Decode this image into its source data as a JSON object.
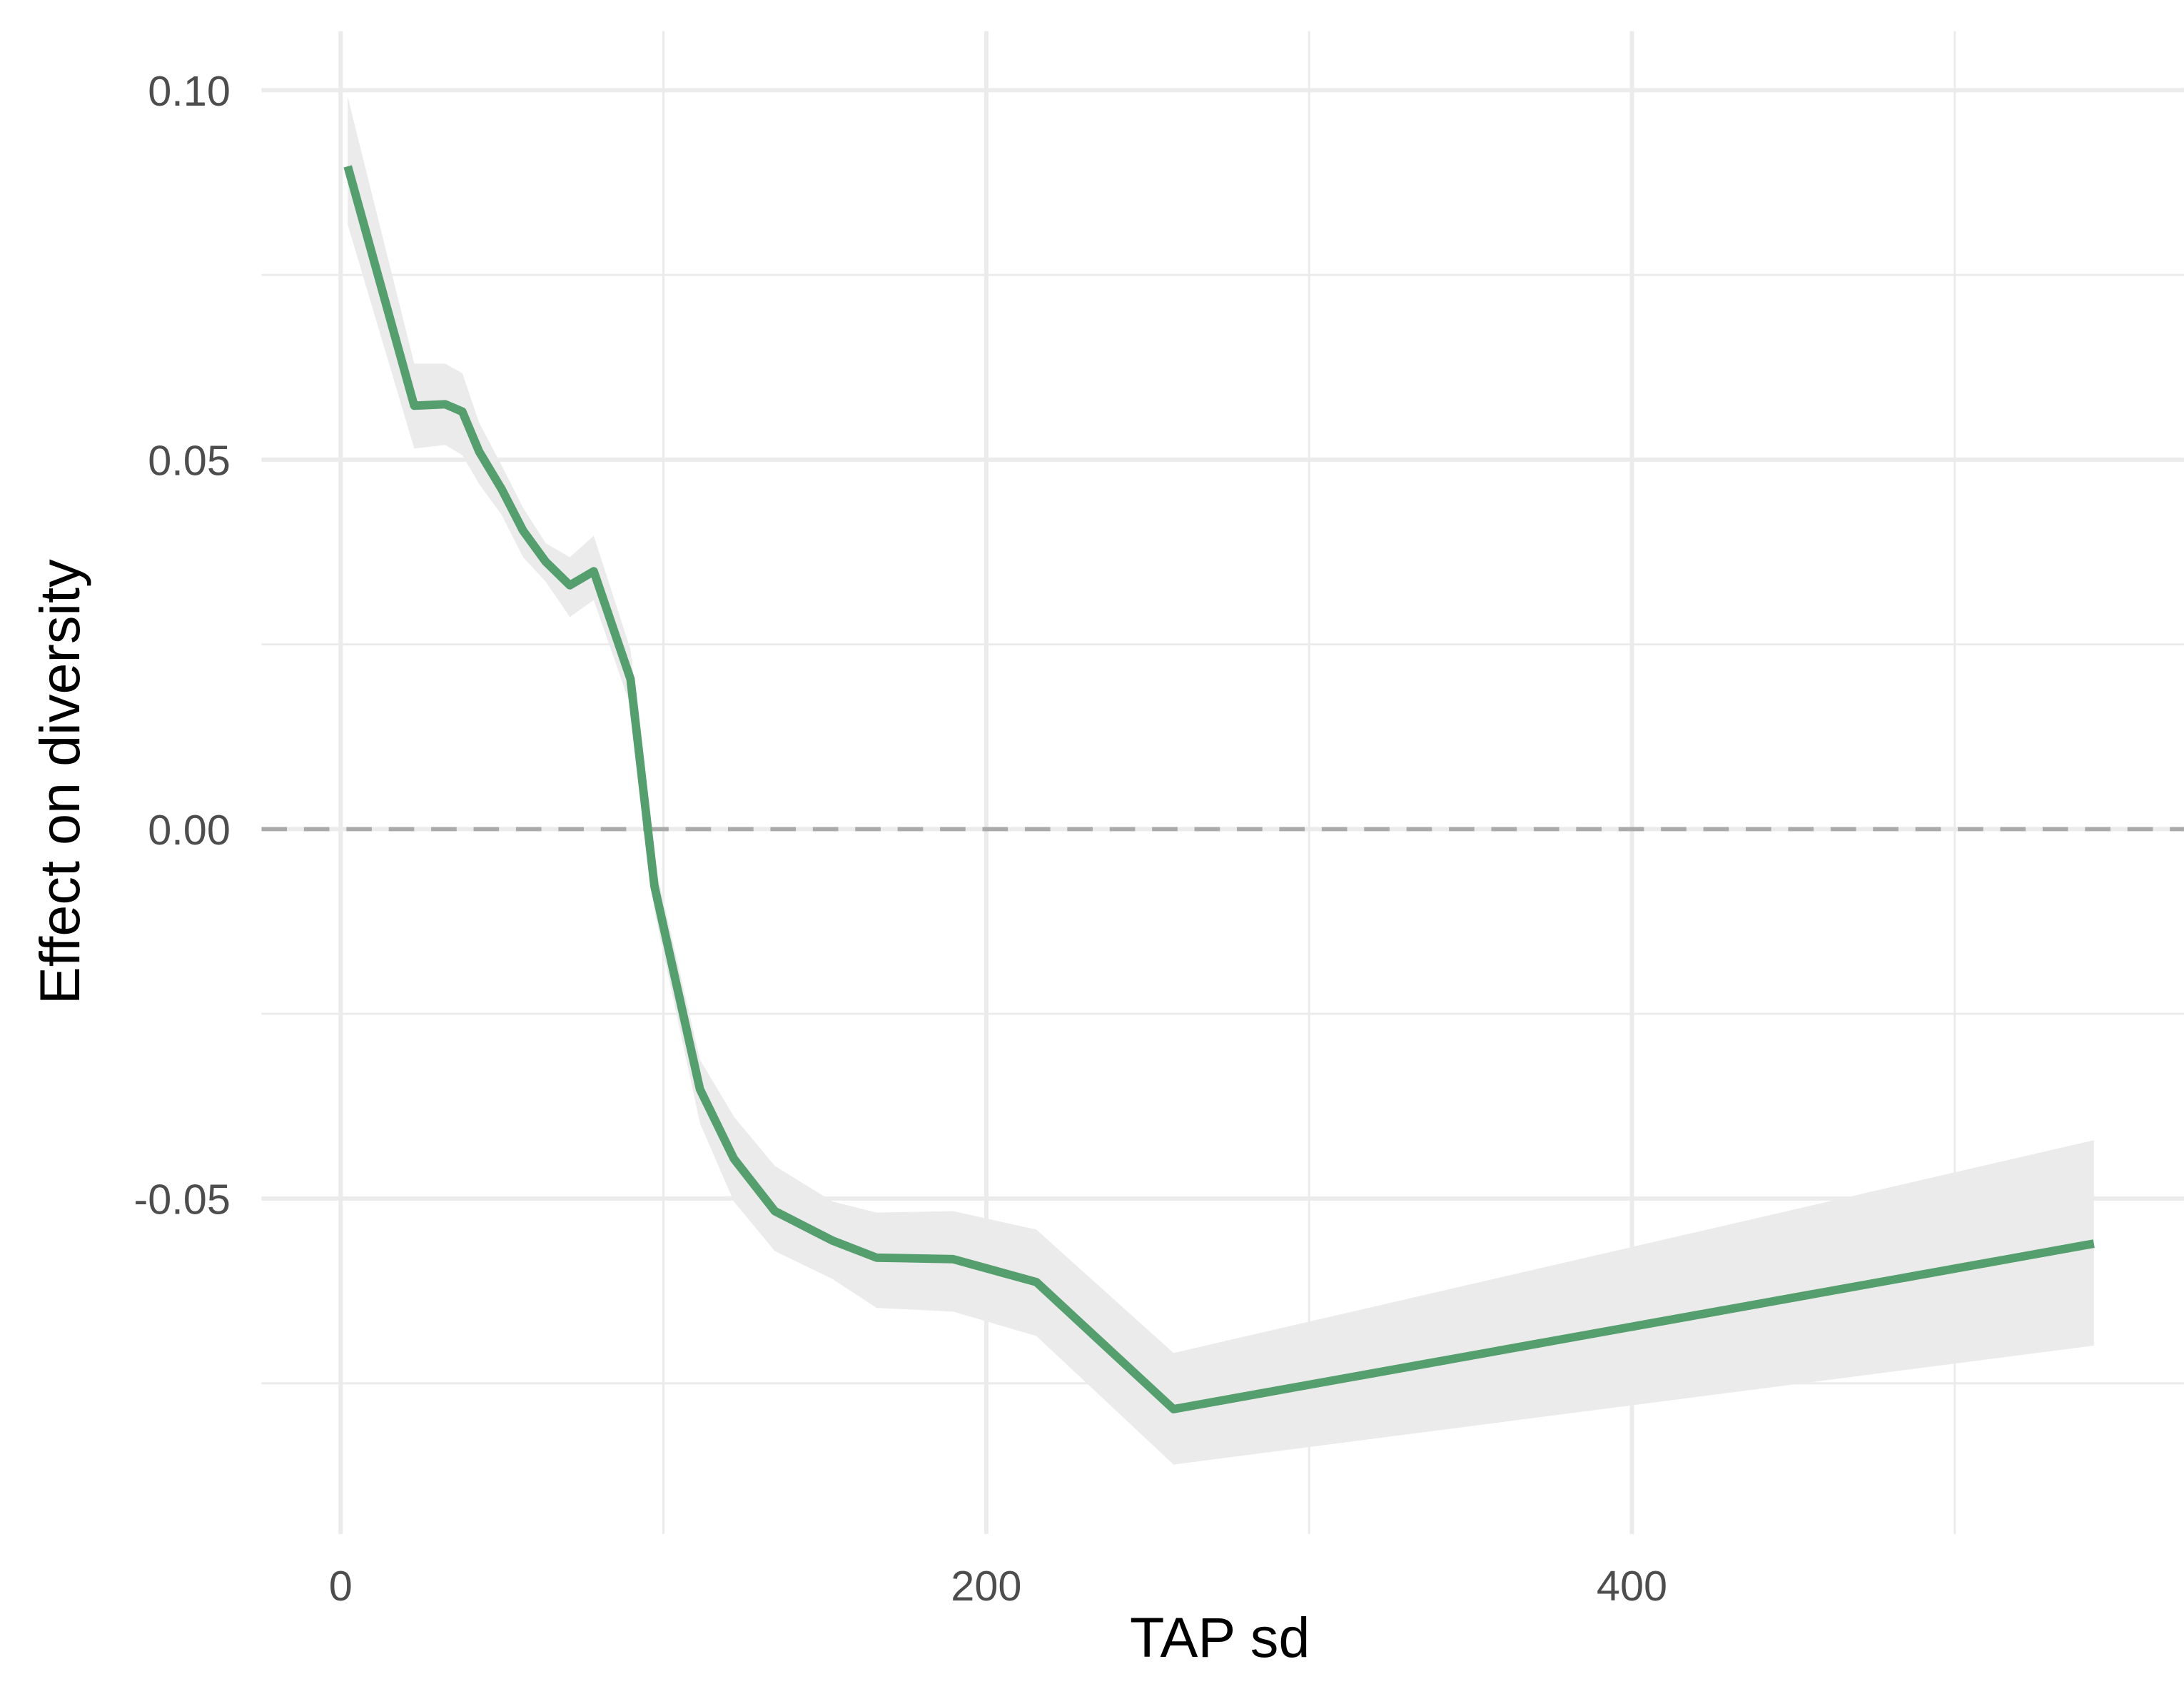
{
  "chart_data": {
    "type": "line",
    "x_label": "TAP sd",
    "y_label": "Effect on diversity",
    "x": [
      2.2,
      22.8,
      32.4,
      37.7,
      42.9,
      49.9,
      56.5,
      63.5,
      71.0,
      78.4,
      89.8,
      97.2,
      111.3,
      121.8,
      134.5,
      152.4,
      166.0,
      189.7,
      215.5,
      258.0,
      543.1
    ],
    "values": [
      0.0897,
      0.0573,
      0.0575,
      0.0565,
      0.0511,
      0.046,
      0.0404,
      0.0362,
      0.033,
      0.0349,
      0.0203,
      -0.0077,
      -0.0352,
      -0.0446,
      -0.0517,
      -0.0557,
      -0.058,
      -0.0582,
      -0.0613,
      -0.0785,
      -0.0561
    ],
    "lower": [
      0.0818,
      0.0515,
      0.052,
      0.0506,
      0.0467,
      0.0425,
      0.0368,
      0.0335,
      0.0287,
      0.031,
      0.0167,
      -0.0111,
      -0.0398,
      -0.0504,
      -0.0571,
      -0.0609,
      -0.0648,
      -0.0653,
      -0.0686,
      -0.086,
      -0.0699
    ],
    "upper": [
      0.0991,
      0.063,
      0.063,
      0.0617,
      0.055,
      0.0492,
      0.0435,
      0.0387,
      0.0368,
      0.0397,
      0.0243,
      -0.0044,
      -0.0312,
      -0.0389,
      -0.0456,
      -0.0504,
      -0.0519,
      -0.0517,
      -0.0542,
      -0.0709,
      -0.0421
    ],
    "color": "#559e6e",
    "band_color": "#ebebeb",
    "xlim": [
      -24.5,
      571
    ],
    "ylim": [
      -0.0954,
      0.108
    ],
    "xticks": [
      0,
      200,
      400
    ],
    "yticks": [
      -0.05,
      {
        "value": 0,
        "label": "0.00"
      },
      0.05,
      {
        "value": 0.1,
        "label": "0.10"
      }
    ],
    "minor_xticks": [
      100,
      300,
      500
    ],
    "minor_yticks": [
      -0.075,
      -0.025,
      0.025,
      0.075
    ],
    "hline": 0,
    "grid": true
  }
}
